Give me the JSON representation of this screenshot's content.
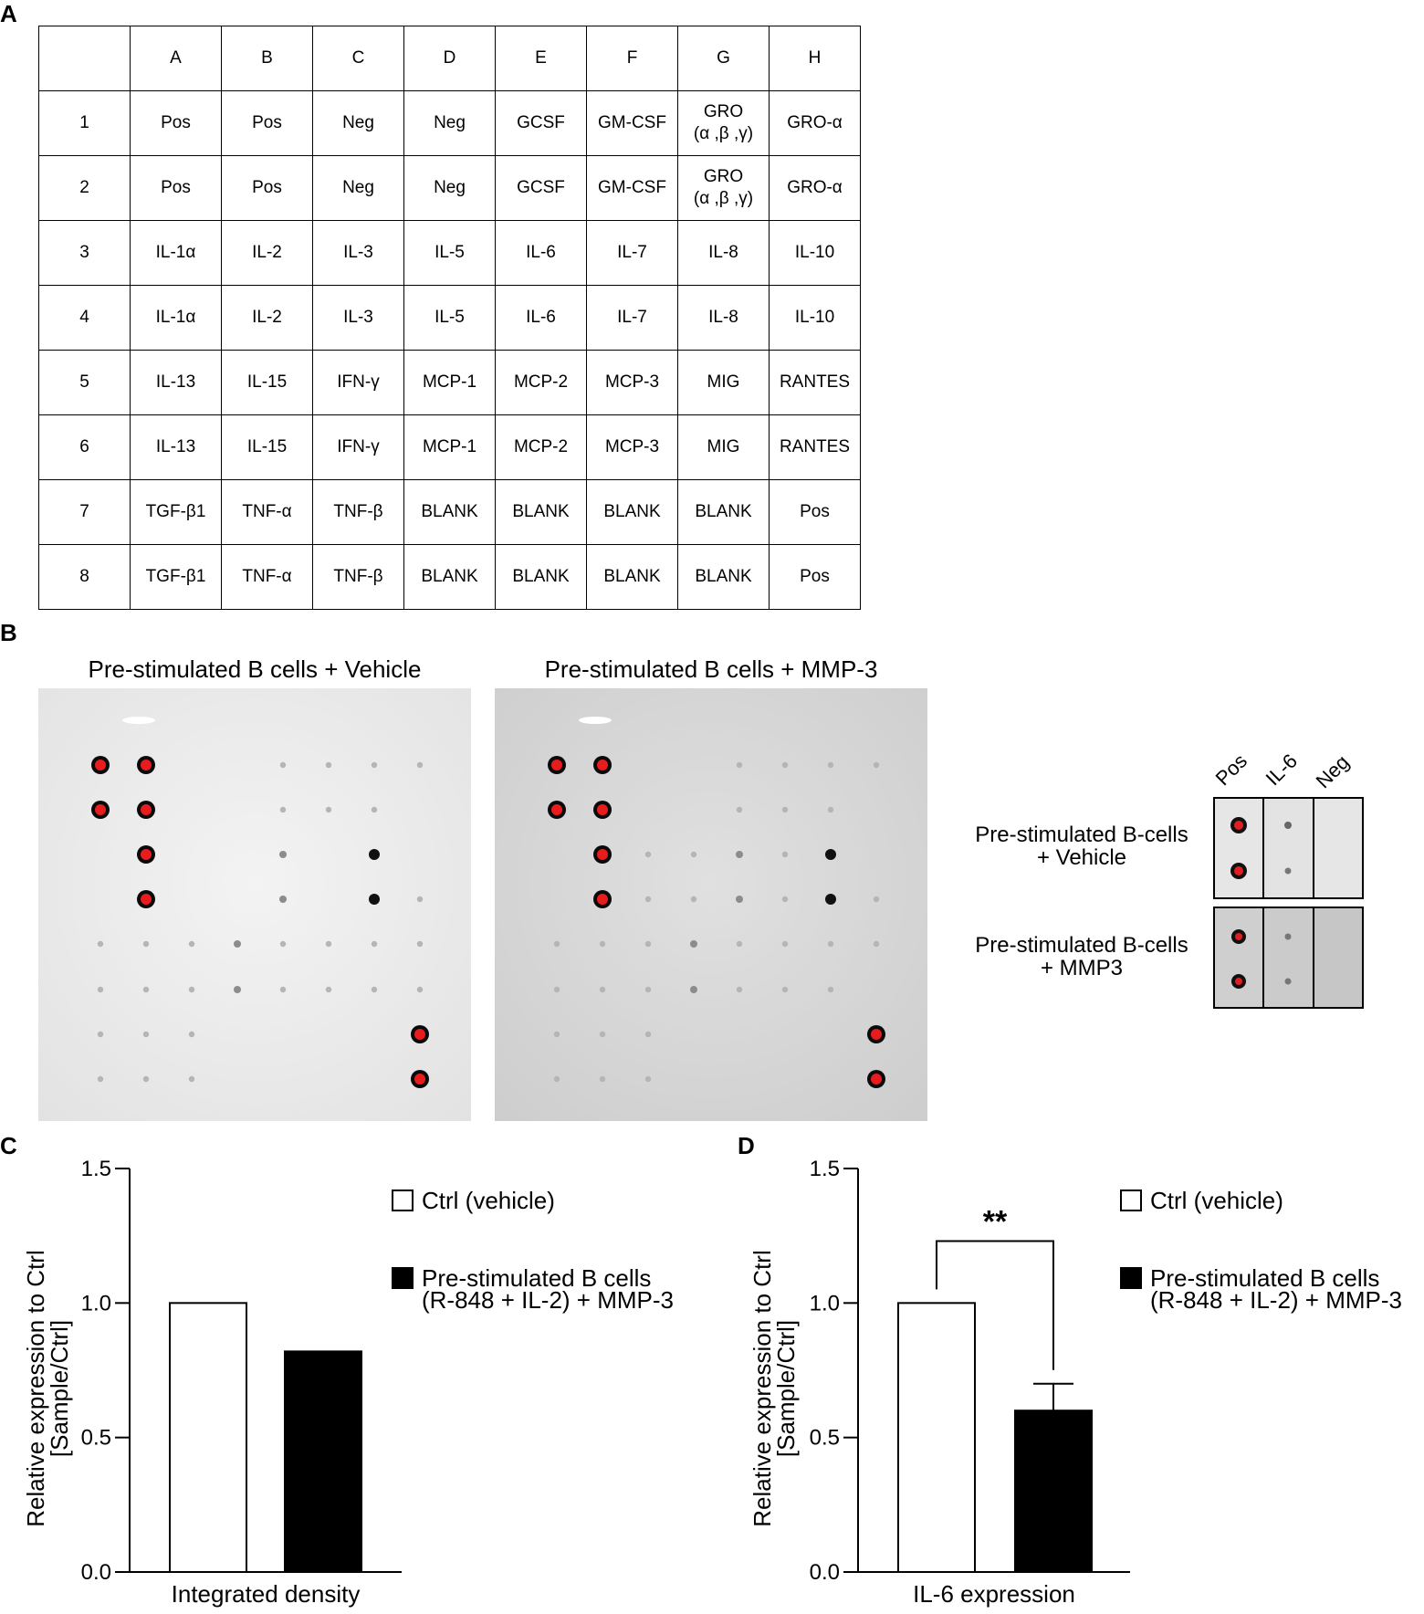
{
  "panelA": {
    "letter": "A",
    "columns": [
      "",
      "A",
      "B",
      "C",
      "D",
      "E",
      "F",
      "G",
      "H"
    ],
    "rows": [
      [
        "1",
        "Pos",
        "Pos",
        "Neg",
        "Neg",
        "GCSF",
        "GM-CSF",
        "GRO\n(α ,β ,γ)",
        "GRO-α"
      ],
      [
        "2",
        "Pos",
        "Pos",
        "Neg",
        "Neg",
        "GCSF",
        "GM-CSF",
        "GRO\n(α ,β ,γ)",
        "GRO-α"
      ],
      [
        "3",
        "IL-1α",
        "IL-2",
        "IL-3",
        "IL-5",
        "IL-6",
        "IL-7",
        "IL-8",
        "IL-10"
      ],
      [
        "4",
        "IL-1α",
        "IL-2",
        "IL-3",
        "IL-5",
        "IL-6",
        "IL-7",
        "IL-8",
        "IL-10"
      ],
      [
        "5",
        "IL-13",
        "IL-15",
        "IFN-γ",
        "MCP-1",
        "MCP-2",
        "MCP-3",
        "MIG",
        "RANTES"
      ],
      [
        "6",
        "IL-13",
        "IL-15",
        "IFN-γ",
        "MCP-1",
        "MCP-2",
        "MCP-3",
        "MIG",
        "RANTES"
      ],
      [
        "7",
        "TGF-β1",
        "TNF-α",
        "TNF-β",
        "BLANK",
        "BLANK",
        "BLANK",
        "BLANK",
        "Pos"
      ],
      [
        "8",
        "TGF-β1",
        "TNF-α",
        "TNF-β",
        "BLANK",
        "BLANK",
        "BLANK",
        "BLANK",
        "Pos"
      ]
    ]
  },
  "panelB": {
    "letter": "B",
    "blot_vehicle_title": "Pre-stimulated B cells + Vehicle",
    "blot_mmp3_title": "Pre-stimulated B cells + MMP-3",
    "crop_columns": [
      "Pos",
      "IL-6",
      "Neg"
    ],
    "crop_row_vehicle": [
      "Pre-stimulated B-cells",
      "+ Vehicle"
    ],
    "crop_row_mmp3": [
      "Pre-stimulated B-cells",
      "+ MMP3"
    ]
  },
  "panelC": {
    "letter": "C"
  },
  "panelD": {
    "letter": "D"
  },
  "chart_data": [
    {
      "type": "bar",
      "categories": [
        "Integrated density"
      ],
      "series": [
        {
          "name": "Ctrl (vehicle)",
          "values": [
            1.0
          ],
          "color": "#ffffff"
        },
        {
          "name": "Pre-stimulated B cells\n(R-848 + IL-2) + MMP-3",
          "values": [
            0.82
          ],
          "color": "#000000"
        }
      ],
      "xlabel": "Integrated density",
      "ylabel": "Relative expression to Ctrl\n[Sample/Ctrl]",
      "ylim": [
        0,
        1.5
      ],
      "yticks": [
        "0.0",
        "0.5",
        "1.0",
        "1.5"
      ],
      "legend": "top-right"
    },
    {
      "type": "bar",
      "categories": [
        "IL-6 expression"
      ],
      "series": [
        {
          "name": "Ctrl (vehicle)",
          "values": [
            1.0
          ],
          "color": "#ffffff"
        },
        {
          "name": "Pre-stimulated B cells\n(R-848 + IL-2) + MMP-3",
          "values": [
            0.6
          ],
          "error": [
            0.1
          ],
          "color": "#000000"
        }
      ],
      "xlabel": "IL-6 expression",
      "ylabel": "Relative expression to Ctrl\n[Sample/Ctrl]",
      "ylim": [
        0,
        1.5
      ],
      "yticks": [
        "0.0",
        "0.5",
        "1.0",
        "1.5"
      ],
      "significance": "**",
      "legend": "top-right"
    }
  ]
}
